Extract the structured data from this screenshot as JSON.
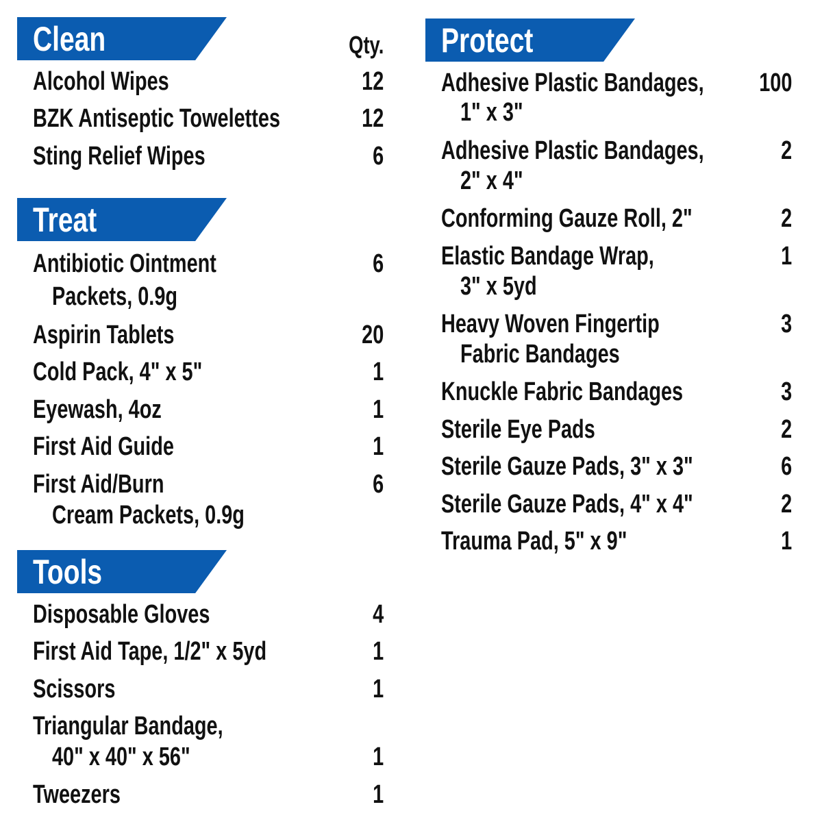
{
  "qty_label": "Qty.",
  "accent_color": "#0b5cb0",
  "sections": [
    {
      "title": "Clean",
      "items": [
        {
          "lines": [
            "Alcohol Wipes"
          ],
          "qty": "12"
        },
        {
          "lines": [
            "BZK Antiseptic Towelettes"
          ],
          "qty": "12"
        },
        {
          "lines": [
            "Sting Relief Wipes"
          ],
          "qty": "6"
        }
      ]
    },
    {
      "title": "Treat",
      "items": [
        {
          "lines": [
            "Antibiotic Ointment",
            "Packets, 0.9g"
          ],
          "qty": "6"
        },
        {
          "lines": [
            "Aspirin Tablets"
          ],
          "qty": "20"
        },
        {
          "lines": [
            "Cold Pack, 4\" x 5\""
          ],
          "qty": "1"
        },
        {
          "lines": [
            "Eyewash, 4oz"
          ],
          "qty": "1"
        },
        {
          "lines": [
            "First Aid Guide"
          ],
          "qty": "1"
        },
        {
          "lines": [
            "First Aid/Burn",
            "Cream Packets, 0.9g"
          ],
          "qty": "6"
        }
      ]
    },
    {
      "title": "Tools",
      "items": [
        {
          "lines": [
            "Disposable Gloves"
          ],
          "qty": "4"
        },
        {
          "lines": [
            "First Aid Tape, 1/2\" x 5yd"
          ],
          "qty": "1"
        },
        {
          "lines": [
            "Scissors"
          ],
          "qty": "1"
        },
        {
          "lines": [
            "Triangular Bandage,",
            "40\" x 40\" x 56\""
          ],
          "qty": "1"
        },
        {
          "lines": [
            "Tweezers"
          ],
          "qty": "1"
        }
      ]
    },
    {
      "title": "Protect",
      "items": [
        {
          "lines": [
            "Adhesive Plastic Bandages,",
            "1\" x 3\""
          ],
          "qty": "100"
        },
        {
          "lines": [
            "Adhesive Plastic Bandages,",
            "2\" x 4\""
          ],
          "qty": "2"
        },
        {
          "lines": [
            "Conforming Gauze Roll, 2\""
          ],
          "qty": "2"
        },
        {
          "lines": [
            "Elastic Bandage Wrap,",
            "3\" x 5yd"
          ],
          "qty": "1"
        },
        {
          "lines": [
            "Heavy Woven Fingertip",
            "Fabric Bandages"
          ],
          "qty": "3"
        },
        {
          "lines": [
            "Knuckle Fabric Bandages"
          ],
          "qty": "3"
        },
        {
          "lines": [
            "Sterile Eye Pads"
          ],
          "qty": "2"
        },
        {
          "lines": [
            "Sterile Gauze Pads, 3\" x 3\""
          ],
          "qty": "6"
        },
        {
          "lines": [
            "Sterile Gauze Pads, 4\" x 4\""
          ],
          "qty": "2"
        },
        {
          "lines": [
            "Trauma Pad, 5\" x 9\""
          ],
          "qty": "1"
        }
      ]
    }
  ]
}
